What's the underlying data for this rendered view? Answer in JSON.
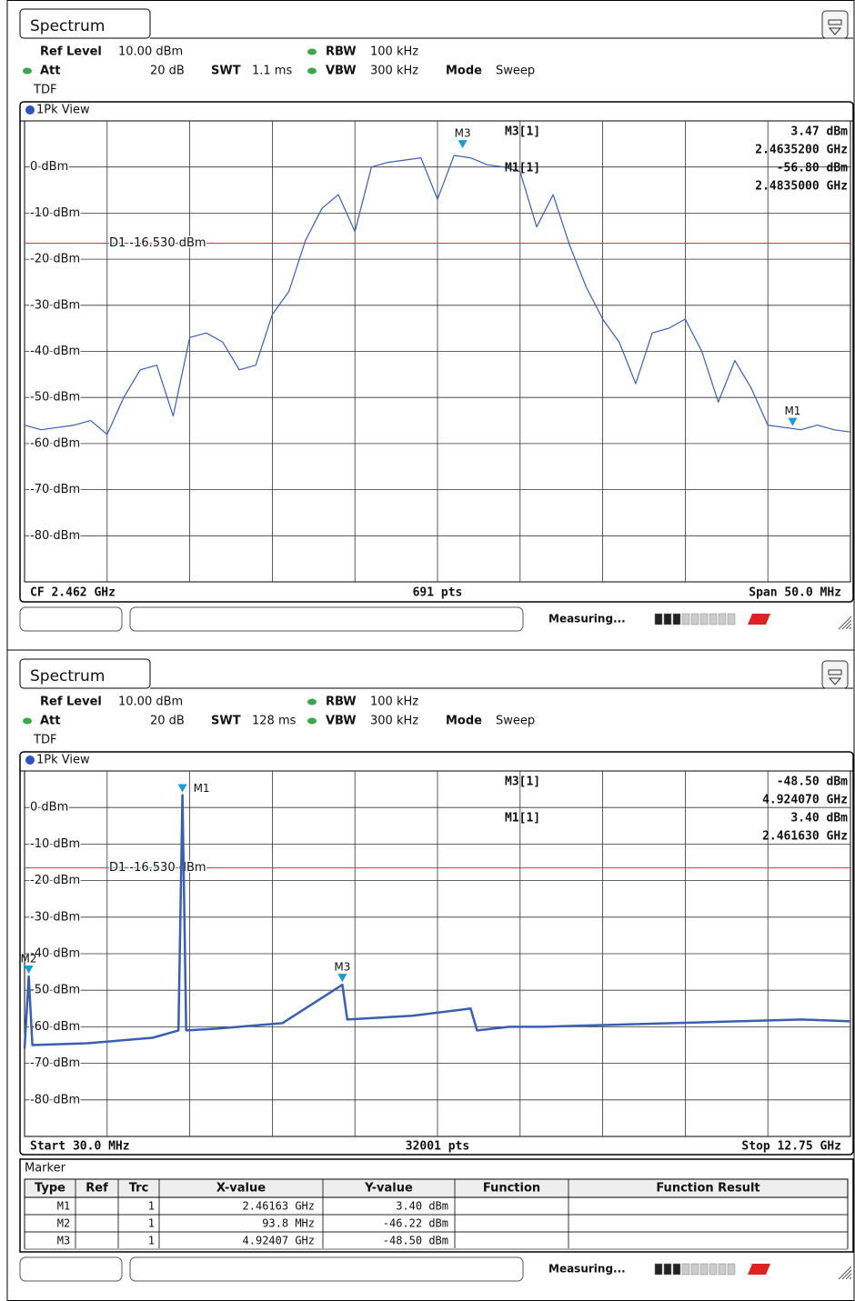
{
  "screens": [
    {
      "tab": "Spectrum",
      "ref_level_label": "Ref Level",
      "ref_level": "10.00 dBm",
      "att_label": "Att",
      "att": "20 dB",
      "swt_label": "SWT",
      "swt": "1.1 ms",
      "rbw_label": "RBW",
      "rbw": "100 kHz",
      "vbw_label": "VBW",
      "vbw": "300 kHz",
      "mode_label": "Mode",
      "mode": "Sweep",
      "tdf": "TDF",
      "view": "1Pk View",
      "footer_left": "CF 2.462 GHz",
      "footer_mid": "691 pts",
      "footer_right": "Span 50.0 MHz",
      "status": "Measuring..."
    },
    {
      "tab": "Spectrum",
      "ref_level_label": "Ref Level",
      "ref_level": "10.00 dBm",
      "att_label": "Att",
      "att": "20 dB",
      "swt_label": "SWT",
      "swt": "128 ms",
      "rbw_label": "RBW",
      "rbw": "100 kHz",
      "vbw_label": "VBW",
      "vbw": "300 kHz",
      "mode_label": "Mode",
      "mode": "Sweep",
      "tdf": "TDF",
      "view": "1Pk View",
      "footer_left": "Start 30.0 MHz",
      "footer_mid": "32001 pts",
      "footer_right": "Stop 12.75 GHz",
      "status": "Measuring..."
    }
  ],
  "chart_data": [
    {
      "type": "line",
      "xlim": [
        2.437,
        2.487
      ],
      "xticks": [
        2.442,
        2.447,
        2.452,
        2.457,
        2.462,
        2.467,
        2.472,
        2.477,
        2.482
      ],
      "ylim": [
        -90,
        10
      ],
      "yticks": [
        {
          "value": 0,
          "label": "0 dBm"
        },
        {
          "value": -10,
          "label": "-10 dBm"
        },
        {
          "value": -20,
          "label": "-20 dBm"
        },
        {
          "value": -30,
          "label": "-30 dBm"
        },
        {
          "value": -40,
          "label": "-40 dBm"
        },
        {
          "value": -50,
          "label": "-50 dBm"
        },
        {
          "value": -60,
          "label": "-60 dBm"
        },
        {
          "value": -70,
          "label": "-70 dBm"
        },
        {
          "value": -80,
          "label": "-80 dBm"
        }
      ],
      "grid": true,
      "threshold": {
        "value": -16.53,
        "label": "D1 -16.530 dBm",
        "color": "#e03030"
      },
      "series": [
        {
          "color": "#3a5fb0",
          "x": [
            2.437,
            2.438,
            2.439,
            2.44,
            2.441,
            2.442,
            2.443,
            2.444,
            2.445,
            2.446,
            2.447,
            2.448,
            2.449,
            2.45,
            2.451,
            2.452,
            2.453,
            2.454,
            2.455,
            2.456,
            2.457,
            2.458,
            2.459,
            2.46,
            2.461,
            2.462,
            2.463,
            2.464,
            2.465,
            2.466,
            2.467,
            2.468,
            2.469,
            2.47,
            2.471,
            2.472,
            2.473,
            2.474,
            2.475,
            2.476,
            2.477,
            2.478,
            2.479,
            2.48,
            2.481,
            2.482,
            2.483,
            2.484,
            2.485,
            2.486,
            2.487
          ],
          "values": [
            -56,
            -57,
            -56.5,
            -56,
            -55,
            -58,
            -50,
            -44,
            -43,
            -54,
            -37,
            -36,
            -38,
            -44,
            -43,
            -32,
            -27,
            -16,
            -9,
            -6,
            -14,
            0,
            1,
            1.5,
            2,
            -7,
            2.5,
            2,
            0.5,
            0,
            -1,
            -13,
            -6,
            -17,
            -26,
            -33,
            -38,
            -47,
            -36,
            -35,
            -33,
            -40,
            -51,
            -42,
            -48,
            -56,
            -56.5,
            -57,
            -56,
            -57,
            -57.5
          ]
        }
      ],
      "markers": [
        {
          "name": "M3",
          "info": "M3[1]",
          "x": 2.46352,
          "y": 3.47,
          "x_label": "2.4635200 GHz",
          "y_label": "3.47 dBm"
        },
        {
          "name": "M1",
          "info": "M1[1]",
          "x": 2.4835,
          "y": -56.8,
          "x_label": "2.4835000 GHz",
          "y_label": "-56.80 dBm"
        }
      ]
    },
    {
      "type": "line",
      "xlim": [
        0.03,
        12.75
      ],
      "xticks": [
        1.302,
        2.574,
        3.846,
        5.118,
        6.39,
        7.662,
        8.934,
        10.206,
        11.478
      ],
      "ylim": [
        -90,
        10
      ],
      "yticks": [
        {
          "value": 0,
          "label": "0 dBm"
        },
        {
          "value": -10,
          "label": "-10 dBm"
        },
        {
          "value": -20,
          "label": "-20 dBm"
        },
        {
          "value": -30,
          "label": "-30 dBm"
        },
        {
          "value": -40,
          "label": "-40 dBm"
        },
        {
          "value": -50,
          "label": "-50 dBm"
        },
        {
          "value": -60,
          "label": "-60 dBm"
        },
        {
          "value": -70,
          "label": "-70 dBm"
        },
        {
          "value": -80,
          "label": "-80 dBm"
        }
      ],
      "grid": true,
      "threshold": {
        "value": -16.53,
        "label": "D1 -16.530 dBm",
        "color": "#e03030"
      },
      "series": [
        {
          "color": "#3a5fb0",
          "x": [
            0.03,
            0.0938,
            0.15,
            1.0,
            2.0,
            2.4,
            2.4616,
            2.52,
            3.0,
            4.0,
            4.924,
            5.0,
            6.0,
            6.9,
            7.0,
            7.5,
            8.0,
            9.0,
            10.0,
            11.0,
            12.0,
            12.75
          ],
          "values": [
            -66,
            -46.22,
            -65,
            -64.5,
            -63,
            -61,
            3.4,
            -61,
            -60.5,
            -59,
            -48.5,
            -58,
            -57,
            -55,
            -61,
            -60,
            -60,
            -59.5,
            -59,
            -58.5,
            -58,
            -58.5
          ]
        }
      ],
      "markers": [
        {
          "name": "M3",
          "info": "M3[1]",
          "x": 4.92407,
          "y": -48.5,
          "x_label": "4.924070 GHz",
          "y_label": "-48.50 dBm"
        },
        {
          "name": "M1",
          "info": "M1[1]",
          "x": 2.46163,
          "y": 3.4,
          "x_label": "2.461630 GHz",
          "y_label": "3.40 dBm"
        },
        {
          "name": "M2",
          "x": 0.0938,
          "y": -46.22
        }
      ]
    }
  ],
  "marker_table": {
    "title": "Marker",
    "columns": [
      "Type",
      "Ref",
      "Trc",
      "X-value",
      "Y-value",
      "Function",
      "Function Result"
    ],
    "rows": [
      {
        "type": "M1",
        "trc": "1",
        "x_value": "2.46163 GHz",
        "y_value": "3.40 dBm"
      },
      {
        "type": "M2",
        "trc": "1",
        "x_value": "93.8 MHz",
        "y_value": "-46.22 dBm"
      },
      {
        "type": "M3",
        "trc": "1",
        "x_value": "4.92407 GHz",
        "y_value": "-48.50 dBm"
      }
    ]
  }
}
